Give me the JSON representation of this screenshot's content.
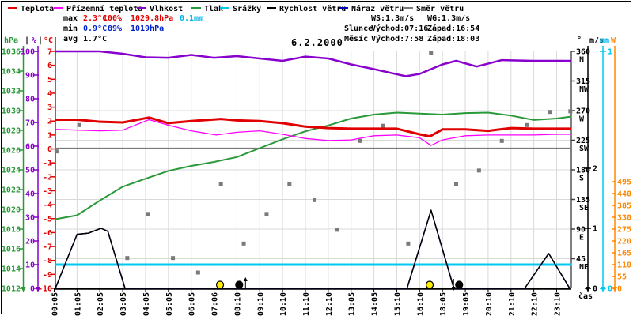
{
  "title": "6.2.2000",
  "legend": [
    {
      "label": "Teplota",
      "color": "#e10000"
    },
    {
      "label": "Přízemní teplota",
      "color": "#ff00ff"
    },
    {
      "label": "Vlhkost",
      "color": "#8800cc"
    },
    {
      "label": "Tlak",
      "color": "#2a9939"
    },
    {
      "label": "Srážky",
      "color": "#00c8f0"
    },
    {
      "label": "Rychlost větru",
      "color": "#000000"
    },
    {
      "label": "Náraz větru",
      "color": "#0000bb"
    },
    {
      "label": "Směr větru",
      "color": "#7a7a7a"
    }
  ],
  "stats": {
    "max_label": "max",
    "max_temp": "2.3°C",
    "max_hum": "100%",
    "max_pres": "1029.8hPa",
    "max_precip": "0.1mm",
    "min_label": "min",
    "min_temp": "0.9°C",
    "min_hum": "89%",
    "min_pres": "1019hPa",
    "avg_label": "avg",
    "avg_temp": "1.7°C",
    "ws": "WS:1.3m/s",
    "wg": "WG:1.3m/s",
    "sun_label": "Slunce",
    "sun_rise": "Východ:07:16",
    "sun_set": "Západ:16:54",
    "moon_label": "Měsíc",
    "moon_rise": "Východ:7:58",
    "moon_set": "Západ:18:03"
  },
  "units": {
    "pressure": "hPa",
    "humidity": "%",
    "temperature": "°C",
    "sep": "|",
    "degree": "°",
    "wind": "m/s",
    "precip": "mm",
    "radiation": "W"
  },
  "xaxis": {
    "label": "čas"
  },
  "chart_data": {
    "type": "line",
    "title": "6.2.2000",
    "x_labels": [
      "00:05",
      "01:05",
      "02:05",
      "03:05",
      "04:05",
      "05:05",
      "06:05",
      "07:06",
      "08:10",
      "09:10",
      "10:10",
      "11:10",
      "12:10",
      "13:05",
      "14:05",
      "15:10",
      "16:10",
      "18:05",
      "19:05",
      "20:10",
      "21:10",
      "22:10",
      "23:10"
    ],
    "axes": {
      "pressure": {
        "unit": "hPa",
        "color": "#2a9939",
        "min": 1012,
        "max": 1036,
        "ticks": [
          1036,
          1034,
          1032,
          1030,
          1028,
          1026,
          1024,
          1022,
          1020,
          1018,
          1016,
          1014,
          1012
        ]
      },
      "humidity": {
        "unit": "%",
        "color": "#8800cc",
        "min": 0,
        "max": 100,
        "ticks": [
          100,
          90,
          80,
          70,
          60,
          50,
          40,
          30,
          20,
          10,
          0
        ]
      },
      "temperature": {
        "unit": "°C",
        "color": "#e10000",
        "min": -10,
        "max": 7,
        "ticks": [
          7,
          6,
          5,
          4,
          3,
          2,
          1,
          0,
          -1,
          -2,
          -3,
          -4,
          -5,
          -6,
          -7,
          -8,
          -9,
          -10
        ]
      },
      "direction": {
        "unit": "°",
        "color": "#000000",
        "min": 0,
        "max": 360,
        "ticks": [
          {
            "deg": 360,
            "label": "N"
          },
          {
            "deg": 315,
            "label": "NW"
          },
          {
            "deg": 270,
            "label": "W"
          },
          {
            "deg": 225,
            "label": "SW"
          },
          {
            "deg": 180,
            "label": "S"
          },
          {
            "deg": 135,
            "label": "SE"
          },
          {
            "deg": 90,
            "label": "E"
          },
          {
            "deg": 45,
            "label": "NE"
          }
        ]
      },
      "wind": {
        "unit": "m/s",
        "color": "#000000",
        "min": 0,
        "max": 3.947,
        "ticks": [
          2,
          1,
          0
        ]
      },
      "precip": {
        "unit": "mm",
        "color": "#00c8f0",
        "min": 0,
        "max": 1,
        "ticks": [
          1,
          0
        ]
      },
      "radiation": {
        "unit": "W",
        "color": "#ff8800",
        "min": 0,
        "max": 1100,
        "ticks": [
          495,
          440,
          385,
          330,
          275,
          220,
          165,
          110,
          55,
          0
        ]
      }
    },
    "series": [
      {
        "name": "Srážky",
        "axis": "precip",
        "color": "#00c8f0",
        "width": 3,
        "points": [
          [
            0,
            0.1
          ],
          [
            22.65,
            0.1
          ]
        ]
      },
      {
        "name": "Směr větru",
        "axis": "direction",
        "color": "#7a7a7a",
        "width": 1.3,
        "constant": 213,
        "samples": [
          [
            0.1,
            208
          ],
          [
            1.1,
            248
          ],
          [
            3.2,
            46
          ],
          [
            4.1,
            113
          ],
          [
            5.2,
            46
          ],
          [
            6.3,
            24
          ],
          [
            7.3,
            158
          ],
          [
            8.3,
            68
          ],
          [
            9.3,
            113
          ],
          [
            10.3,
            158
          ],
          [
            11.4,
            134
          ],
          [
            12.4,
            89
          ],
          [
            13.4,
            224
          ],
          [
            14.4,
            247
          ],
          [
            15.5,
            68
          ],
          [
            16.5,
            358
          ],
          [
            17.6,
            158
          ],
          [
            18.6,
            179
          ],
          [
            19.6,
            224
          ],
          [
            20.7,
            248
          ],
          [
            21.7,
            268
          ],
          [
            22.6,
            269
          ]
        ]
      },
      {
        "name": "Tlak",
        "axis": "pressure",
        "color": "#2a9939",
        "width": 2,
        "points": [
          [
            0,
            1019
          ],
          [
            1,
            1019.4
          ],
          [
            2,
            1020.9
          ],
          [
            3,
            1022.3
          ],
          [
            4,
            1023.1
          ],
          [
            5,
            1023.9
          ],
          [
            6,
            1024.4
          ],
          [
            7,
            1024.8
          ],
          [
            8,
            1025.3
          ],
          [
            9,
            1026.2
          ],
          [
            10,
            1027.1
          ],
          [
            11,
            1027.9
          ],
          [
            12,
            1028.5
          ],
          [
            13,
            1029.2
          ],
          [
            14,
            1029.6
          ],
          [
            15,
            1029.8
          ],
          [
            16,
            1029.7
          ],
          [
            17,
            1029.6
          ],
          [
            18,
            1029.75
          ],
          [
            19,
            1029.8
          ],
          [
            20,
            1029.5
          ],
          [
            21,
            1029.05
          ],
          [
            22,
            1029.2
          ],
          [
            22.65,
            1029.4
          ]
        ]
      },
      {
        "name": "Vlhkost",
        "axis": "humidity",
        "color": "#8800cc",
        "width": 2.5,
        "points": [
          [
            0,
            100
          ],
          [
            1,
            100
          ],
          [
            2,
            100
          ],
          [
            3,
            99
          ],
          [
            4,
            97.5
          ],
          [
            5,
            97.3
          ],
          [
            6,
            98.5
          ],
          [
            7,
            97.3
          ],
          [
            8,
            98
          ],
          [
            9,
            97
          ],
          [
            10,
            96
          ],
          [
            11,
            97.8
          ],
          [
            12,
            97
          ],
          [
            13,
            94.5
          ],
          [
            14,
            92.5
          ],
          [
            15.4,
            89.5
          ],
          [
            16,
            90.5
          ],
          [
            17,
            94.5
          ],
          [
            17.6,
            96
          ],
          [
            18.5,
            93.6
          ],
          [
            19.6,
            96.3
          ],
          [
            21,
            96
          ],
          [
            22,
            96
          ],
          [
            22.65,
            96
          ]
        ]
      },
      {
        "name": "Přízemní teplota",
        "axis": "temperature",
        "color": "#ff00ff",
        "width": 1.3,
        "points": [
          [
            0,
            1.4
          ],
          [
            1,
            1.35
          ],
          [
            2,
            1.3
          ],
          [
            3,
            1.35
          ],
          [
            4.15,
            2.1
          ],
          [
            5,
            1.7
          ],
          [
            6,
            1.3
          ],
          [
            7.1,
            1.0
          ],
          [
            8,
            1.2
          ],
          [
            9,
            1.3
          ],
          [
            10,
            1.05
          ],
          [
            11,
            0.75
          ],
          [
            12,
            0.6
          ],
          [
            13,
            0.65
          ],
          [
            14,
            0.95
          ],
          [
            15,
            1.0
          ],
          [
            16,
            0.8
          ],
          [
            16.5,
            0.25
          ],
          [
            17,
            0.65
          ],
          [
            18,
            0.95
          ],
          [
            19,
            1.0
          ],
          [
            20,
            1.0
          ],
          [
            21,
            1.0
          ],
          [
            22,
            1.05
          ],
          [
            22.65,
            1.05
          ]
        ]
      },
      {
        "name": "Teplota",
        "axis": "temperature",
        "color": "#e10000",
        "width": 3,
        "points": [
          [
            0,
            2.1
          ],
          [
            1,
            2.1
          ],
          [
            2,
            1.95
          ],
          [
            3,
            1.9
          ],
          [
            4.15,
            2.25
          ],
          [
            5,
            1.85
          ],
          [
            6,
            2.0
          ],
          [
            7.3,
            2.15
          ],
          [
            8,
            2.05
          ],
          [
            9,
            2.0
          ],
          [
            10,
            1.85
          ],
          [
            11,
            1.6
          ],
          [
            12,
            1.5
          ],
          [
            13,
            1.45
          ],
          [
            14,
            1.45
          ],
          [
            15,
            1.45
          ],
          [
            16,
            1.05
          ],
          [
            16.45,
            0.9
          ],
          [
            17,
            1.4
          ],
          [
            18,
            1.4
          ],
          [
            19,
            1.3
          ],
          [
            20,
            1.5
          ],
          [
            21,
            1.45
          ],
          [
            22,
            1.45
          ],
          [
            22.65,
            1.45
          ]
        ]
      },
      {
        "name": "Náraz větru",
        "axis": "wind",
        "color": "#0000bb",
        "width": 1.5,
        "points": [
          [
            0,
            0
          ],
          [
            0.05,
            0
          ],
          [
            1.0,
            0.9
          ],
          [
            1.5,
            0.92
          ],
          [
            2.05,
            1.0
          ],
          [
            2.35,
            0.95
          ],
          [
            3.1,
            0
          ],
          [
            15.45,
            0
          ],
          [
            16.5,
            1.3
          ],
          [
            17.5,
            0
          ],
          [
            20.6,
            0
          ],
          [
            21.65,
            0.58
          ],
          [
            22.57,
            0
          ]
        ]
      },
      {
        "name": "Rychlost větru",
        "axis": "wind",
        "color": "#000000",
        "width": 1.5,
        "points": [
          [
            0,
            0
          ],
          [
            0.05,
            0
          ],
          [
            1.0,
            0.9
          ],
          [
            1.5,
            0.92
          ],
          [
            2.05,
            1.0
          ],
          [
            2.35,
            0.95
          ],
          [
            3.1,
            0
          ],
          [
            15.45,
            0
          ],
          [
            16.5,
            1.3
          ],
          [
            17.5,
            0
          ],
          [
            20.6,
            0
          ],
          [
            21.65,
            0.58
          ],
          [
            22.57,
            0
          ]
        ]
      }
    ],
    "events": [
      {
        "name": "sunrise",
        "symbol": "sun",
        "x": 7.26,
        "time": "07:16"
      },
      {
        "name": "moonrise",
        "symbol": "moon",
        "x": 8.1,
        "time": "7:58",
        "arrow": "up",
        "arrow_dx": 8
      },
      {
        "name": "sunset",
        "symbol": "sun",
        "x": 16.44,
        "time": "16:54"
      },
      {
        "name": "moonset",
        "symbol": "moon",
        "x": 17.73,
        "time": "18:03",
        "arrow": "down",
        "arrow_dx": -7
      }
    ],
    "colors": {
      "sun": "#ffee00",
      "moon": "#000000",
      "grid": "#d9d9d9"
    }
  }
}
